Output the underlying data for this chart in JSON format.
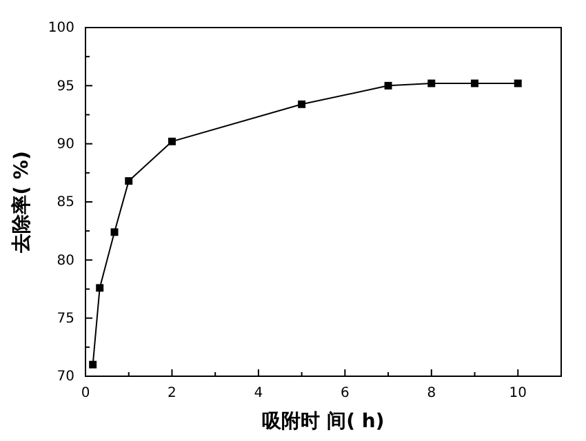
{
  "chart_data": {
    "type": "line",
    "xlabel": "吸附时 间( h)",
    "ylabel": "去除率( %)",
    "x": [
      0.17,
      0.33,
      0.67,
      1,
      2,
      5,
      7,
      8,
      9,
      10
    ],
    "series": [
      {
        "color": "#000000",
        "values": [
          71.0,
          77.6,
          82.4,
          86.8,
          90.2,
          93.4,
          95.0,
          95.2,
          95.2,
          95.2
        ]
      }
    ],
    "xlim": [
      0,
      11
    ],
    "xticks": [
      0,
      2,
      4,
      6,
      8,
      10
    ],
    "ylim": [
      70,
      100
    ],
    "yticks": [
      70,
      75,
      80,
      85,
      90,
      95,
      100
    ],
    "marker": "square",
    "line_style": "solid"
  }
}
